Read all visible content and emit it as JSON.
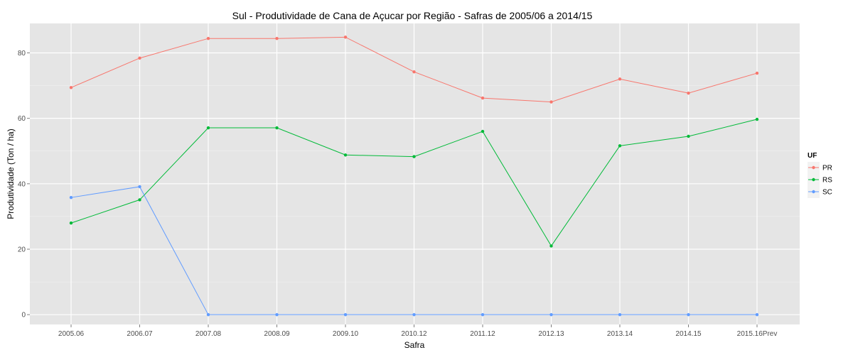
{
  "chart_data": {
    "type": "line",
    "title": "Sul  - Produtividade de Cana de Açucar por Região - Safras de 2005/06 a 2014/15",
    "xlabel": "Safra",
    "ylabel": "Produtividade (Ton / ha)",
    "categories": [
      "2005.06",
      "2006.07",
      "2007.08",
      "2008.09",
      "2009.10",
      "2010.12",
      "2011.12",
      "2012.13",
      "2013.14",
      "2014.15",
      "2015.16Prev"
    ],
    "ylim": [
      -3,
      89
    ],
    "yticks": [
      0,
      20,
      40,
      60,
      80
    ],
    "grid": true,
    "legend": {
      "title": "UF",
      "position": "right"
    },
    "series": [
      {
        "name": "PR",
        "color": "#F8766D",
        "values": [
          69.4,
          78.4,
          84.4,
          84.4,
          84.8,
          74.2,
          66.2,
          65.0,
          72.0,
          67.7,
          73.8
        ]
      },
      {
        "name": "RS",
        "color": "#00BA38",
        "values": [
          28.0,
          35.1,
          57.1,
          57.1,
          48.8,
          48.3,
          56.0,
          21.0,
          51.6,
          54.5,
          59.7
        ]
      },
      {
        "name": "SC",
        "color": "#619CFF",
        "values": [
          35.8,
          39.1,
          0.0,
          0.0,
          0.0,
          0.0,
          0.0,
          0.0,
          0.0,
          0.0,
          0.0
        ]
      }
    ]
  }
}
